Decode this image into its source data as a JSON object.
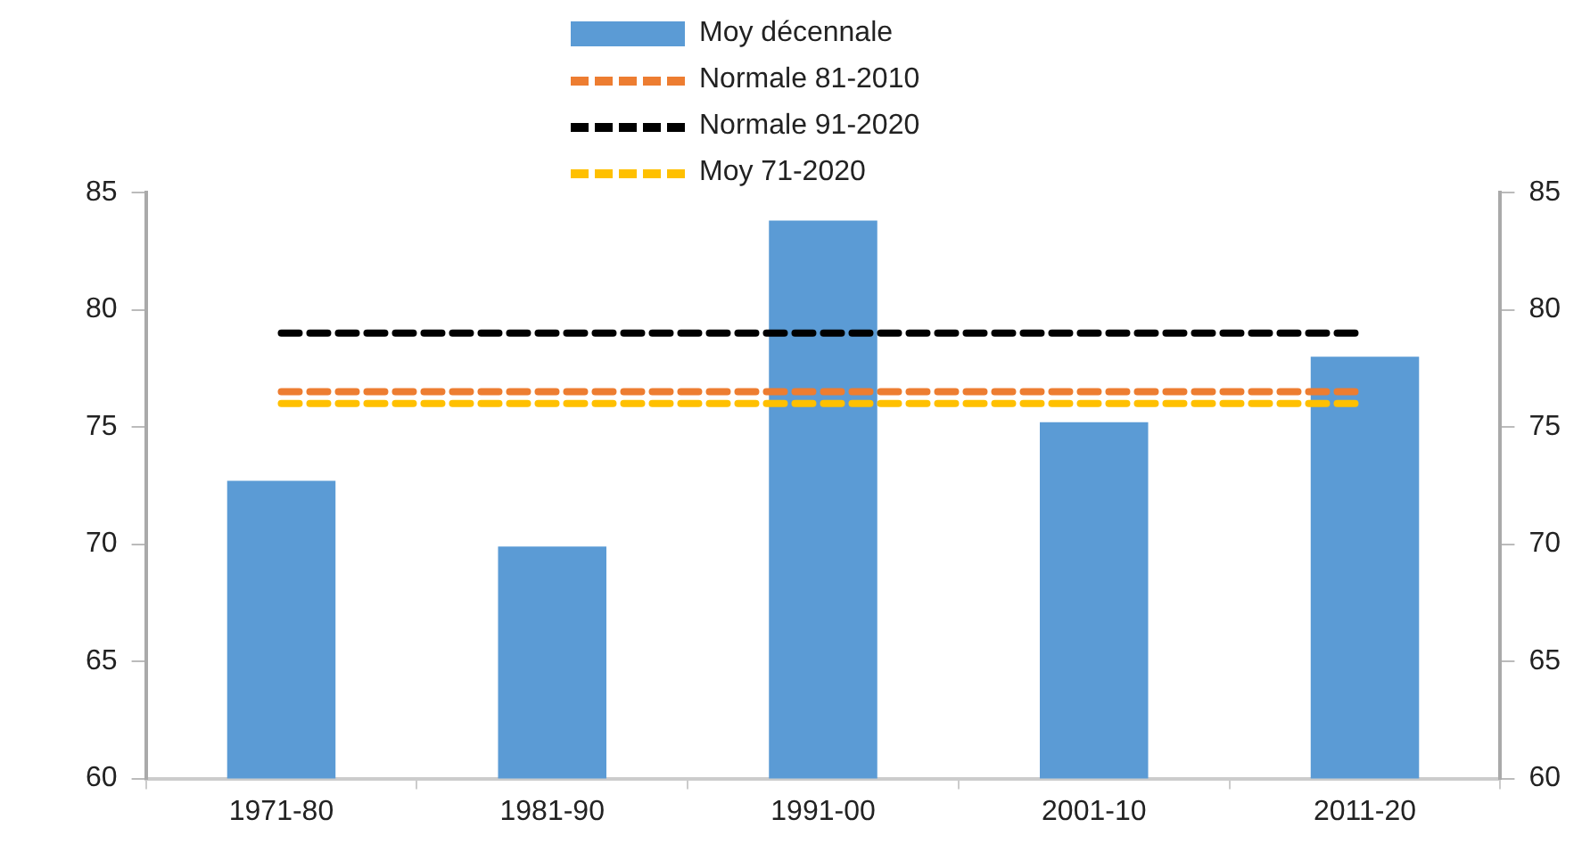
{
  "chart_data": {
    "type": "bar",
    "categories": [
      "1971-80",
      "1981-90",
      "1991-00",
      "2001-10",
      "2011-20"
    ],
    "series": [
      {
        "name": "Moy décennale",
        "color": "#5b9bd5",
        "values": [
          72.7,
          69.9,
          83.8,
          75.2,
          78.0
        ]
      },
      {
        "name": "Normale 81-2010",
        "type": "line",
        "color": "#ed7d31",
        "line_style": "dashed",
        "values": [
          76.5,
          76.5,
          76.5,
          76.5,
          76.5
        ]
      },
      {
        "name": "Normale 91-2020",
        "type": "line",
        "color": "#000000",
        "line_style": "dashed",
        "values": [
          79.0,
          79.0,
          79.0,
          79.0,
          79.0
        ]
      },
      {
        "name": "Moy 71-2020",
        "type": "line",
        "color": "#ffc000",
        "line_style": "dashed",
        "values": [
          76.0,
          76.0,
          76.0,
          76.0,
          76.0
        ]
      }
    ],
    "ylim": [
      60,
      85
    ],
    "yticks": [
      60,
      65,
      70,
      75,
      80,
      85
    ],
    "y2lim": [
      60,
      85
    ],
    "y2ticks": [
      60,
      65,
      70,
      75,
      80,
      85
    ],
    "grid": false,
    "legend": "top",
    "marker": "none"
  }
}
